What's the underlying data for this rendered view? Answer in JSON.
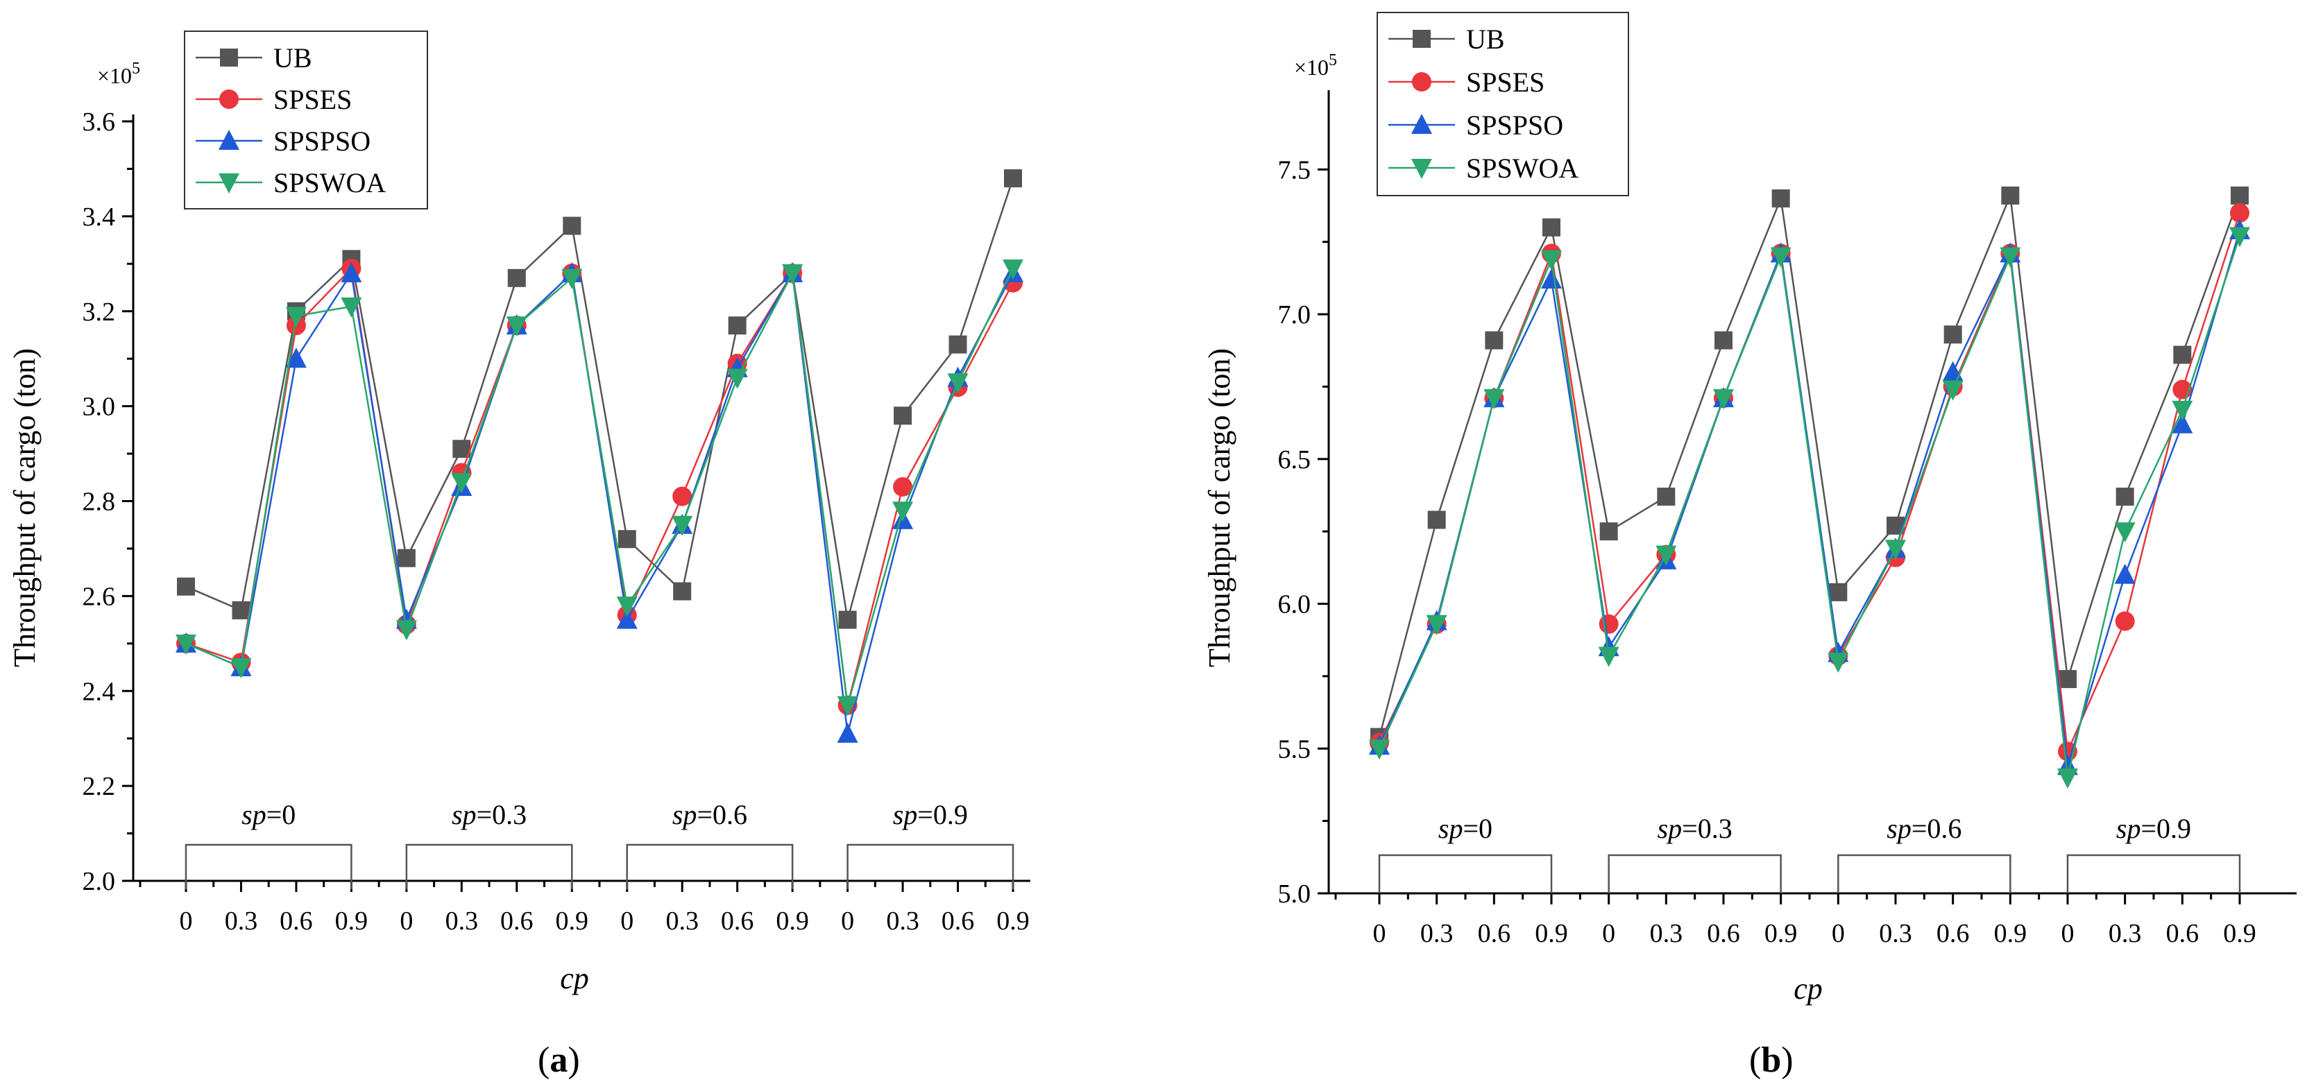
{
  "chart_data": [
    {
      "type": "line",
      "panel": "(a)",
      "caption_paren_open": "(",
      "caption_letter": "a",
      "caption_paren_close": ")",
      "xlabel": "cp",
      "ylabel": "Throughput of cargo (ton)",
      "multiplier": "×10",
      "multiplier_exp": "5",
      "ylim": [
        2.0,
        3.6
      ],
      "yticks": [
        "2.0",
        "2.2",
        "2.4",
        "2.6",
        "2.8",
        "3.0",
        "3.2",
        "3.4",
        "3.6"
      ],
      "x": [
        "0",
        "0.3",
        "0.6",
        "0.9",
        "0",
        "0.3",
        "0.6",
        "0.9",
        "0",
        "0.3",
        "0.6",
        "0.9",
        "0",
        "0.3",
        "0.6",
        "0.9"
      ],
      "groups": [
        {
          "sp": "sp",
          "val": "=0"
        },
        {
          "sp": "sp",
          "val": "=0.3"
        },
        {
          "sp": "sp",
          "val": "=0.6"
        },
        {
          "sp": "sp",
          "val": "=0.9"
        }
      ],
      "series": [
        {
          "name": "UB",
          "color": "#555555",
          "marker": "square",
          "values": [
            2.62,
            2.57,
            3.2,
            3.31,
            2.68,
            2.91,
            3.27,
            3.38,
            2.72,
            2.61,
            3.17,
            3.28,
            2.55,
            2.98,
            3.13,
            3.48
          ]
        },
        {
          "name": "SPSES",
          "color": "#e8363c",
          "marker": "circle",
          "values": [
            2.5,
            2.46,
            3.17,
            3.29,
            2.54,
            2.86,
            3.17,
            3.28,
            2.56,
            2.81,
            3.09,
            3.28,
            2.37,
            2.83,
            3.04,
            3.26
          ]
        },
        {
          "name": "SPSPSO",
          "color": "#1f5ad6",
          "marker": "triangle-up",
          "values": [
            2.5,
            2.45,
            3.1,
            3.28,
            2.55,
            2.83,
            3.17,
            3.28,
            2.55,
            2.75,
            3.08,
            3.28,
            2.31,
            2.76,
            3.06,
            3.28
          ]
        },
        {
          "name": "SPSWOA",
          "color": "#2aa66c",
          "marker": "triangle-down",
          "values": [
            2.5,
            2.45,
            3.19,
            3.21,
            2.53,
            2.84,
            3.17,
            3.27,
            2.58,
            2.75,
            3.06,
            3.28,
            2.37,
            2.78,
            3.05,
            3.29
          ]
        }
      ]
    },
    {
      "type": "line",
      "panel": "(b)",
      "caption_paren_open": "(",
      "caption_letter": "b",
      "caption_paren_close": ")",
      "xlabel": "cp",
      "ylabel": "Throughput of cargo (ton)",
      "multiplier": "×10",
      "multiplier_exp": "5",
      "ylim": [
        5.0,
        7.75
      ],
      "yticks": [
        "5.0",
        "5.5",
        "6.0",
        "6.5",
        "7.0",
        "7.5"
      ],
      "x": [
        "0",
        "0.3",
        "0.6",
        "0.9",
        "0",
        "0.3",
        "0.6",
        "0.9",
        "0",
        "0.3",
        "0.6",
        "0.9",
        "0",
        "0.3",
        "0.6",
        "0.9"
      ],
      "groups": [
        {
          "sp": "sp",
          "val": "=0"
        },
        {
          "sp": "sp",
          "val": "=0.3"
        },
        {
          "sp": "sp",
          "val": "=0.6"
        },
        {
          "sp": "sp",
          "val": "=0.9"
        }
      ],
      "series": [
        {
          "name": "UB",
          "color": "#555555",
          "marker": "square",
          "values": [
            5.54,
            6.29,
            6.91,
            7.3,
            6.25,
            6.37,
            6.91,
            7.4,
            6.04,
            6.27,
            6.93,
            7.41,
            5.74,
            6.37,
            6.86,
            7.41
          ]
        },
        {
          "name": "SPSES",
          "color": "#e8363c",
          "marker": "circle",
          "values": [
            5.52,
            5.93,
            6.71,
            7.21,
            5.93,
            6.17,
            6.71,
            7.21,
            5.82,
            6.16,
            6.75,
            7.21,
            5.49,
            5.94,
            6.74,
            7.35
          ]
        },
        {
          "name": "SPSPSO",
          "color": "#1f5ad6",
          "marker": "triangle-up",
          "values": [
            5.51,
            5.94,
            6.71,
            7.12,
            5.85,
            6.15,
            6.71,
            7.21,
            5.83,
            6.19,
            6.8,
            7.21,
            5.44,
            6.1,
            6.62,
            7.29
          ]
        },
        {
          "name": "SPSWOA",
          "color": "#2aa66c",
          "marker": "triangle-down",
          "values": [
            5.5,
            5.93,
            6.71,
            7.19,
            5.82,
            6.17,
            6.71,
            7.2,
            5.8,
            6.19,
            6.74,
            7.2,
            5.4,
            6.25,
            6.67,
            7.27
          ]
        }
      ]
    }
  ]
}
